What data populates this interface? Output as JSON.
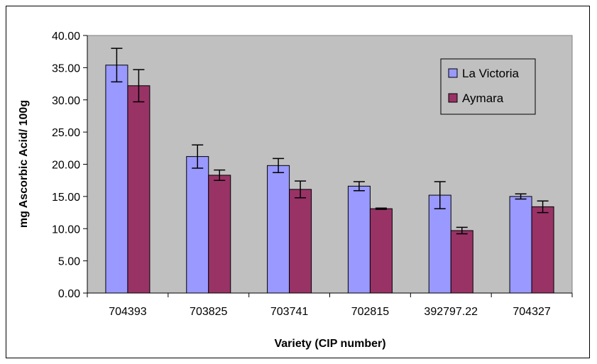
{
  "chart_data": {
    "type": "bar",
    "categories": [
      "704393",
      "703825",
      "703741",
      "702815",
      "392797.22",
      "704327"
    ],
    "series": [
      {
        "name": "La Victoria",
        "color": "#9999ff",
        "values": [
          35.4,
          21.2,
          19.8,
          16.6,
          15.2,
          15.0
        ],
        "error": [
          2.6,
          1.8,
          1.1,
          0.7,
          2.1,
          0.4
        ]
      },
      {
        "name": "Aymara",
        "color": "#993366",
        "values": [
          32.2,
          18.3,
          16.1,
          13.1,
          9.7,
          13.4
        ],
        "error": [
          2.5,
          0.8,
          1.3,
          0.1,
          0.5,
          0.9
        ]
      }
    ],
    "xlabel": "Variety (CIP number)",
    "ylabel": "mg Ascorbic Acid/ 100g",
    "ylim": [
      0,
      40
    ],
    "yticks": [
      "0.00",
      "5.00",
      "10.00",
      "15.00",
      "20.00",
      "25.00",
      "30.00",
      "35.00",
      "40.00"
    ],
    "plot_background": "#c0c0c0",
    "grid": false,
    "legend_position": "top-right"
  }
}
